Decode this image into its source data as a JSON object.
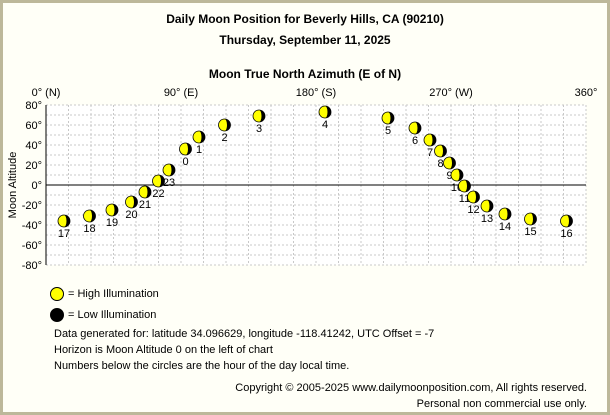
{
  "header": {
    "title": "Daily Moon Position for Beverly Hills, CA (90210)",
    "subtitle": "Thursday, September 11, 2025"
  },
  "chart_data": {
    "type": "scatter",
    "xlabel": "Moon True North Azimuth (E of N)",
    "ylabel": "Moon Altitude",
    "xlim": [
      0,
      360
    ],
    "ylim": [
      -80,
      80
    ],
    "x_ticks": [
      {
        "value": 0,
        "label": "0° (N)"
      },
      {
        "value": 90,
        "label": "90° (E)"
      },
      {
        "value": 180,
        "label": "180° (S)"
      },
      {
        "value": 270,
        "label": "270° (W)"
      },
      {
        "value": 360,
        "label": "360°"
      }
    ],
    "y_ticks": [
      80,
      60,
      40,
      20,
      0,
      -20,
      -40,
      -60,
      -80
    ],
    "y_tick_labels": [
      "80°",
      "60°",
      "40°",
      "20°",
      "0°",
      "-20°",
      "-40°",
      "-60°",
      "-80°"
    ],
    "grid": true,
    "points": [
      {
        "hour": "0",
        "x": 93,
        "y": 36
      },
      {
        "hour": "1",
        "x": 102,
        "y": 48
      },
      {
        "hour": "2",
        "x": 119,
        "y": 60
      },
      {
        "hour": "3",
        "x": 142,
        "y": 69
      },
      {
        "hour": "4",
        "x": 186,
        "y": 73
      },
      {
        "hour": "5",
        "x": 228,
        "y": 67
      },
      {
        "hour": "6",
        "x": 246,
        "y": 57
      },
      {
        "hour": "7",
        "x": 256,
        "y": 45
      },
      {
        "hour": "8",
        "x": 263,
        "y": 34
      },
      {
        "hour": "9",
        "x": 269,
        "y": 22
      },
      {
        "hour": "10",
        "x": 274,
        "y": 10
      },
      {
        "hour": "11",
        "x": 279,
        "y": -1
      },
      {
        "hour": "12",
        "x": 285,
        "y": -12
      },
      {
        "hour": "13",
        "x": 294,
        "y": -21
      },
      {
        "hour": "14",
        "x": 306,
        "y": -29
      },
      {
        "hour": "15",
        "x": 323,
        "y": -34
      },
      {
        "hour": "16",
        "x": 347,
        "y": -36
      },
      {
        "hour": "17",
        "x": 12,
        "y": -36
      },
      {
        "hour": "18",
        "x": 29,
        "y": -31
      },
      {
        "hour": "19",
        "x": 44,
        "y": -25
      },
      {
        "hour": "20",
        "x": 57,
        "y": -17
      },
      {
        "hour": "21",
        "x": 66,
        "y": -7
      },
      {
        "hour": "22",
        "x": 75,
        "y": 4
      },
      {
        "hour": "23",
        "x": 82,
        "y": 15
      }
    ]
  },
  "legend": {
    "high_label": "= High Illumination",
    "low_label": "= Low Illumination",
    "high_color": "#ffff00",
    "low_color": "#000000"
  },
  "notes": {
    "line1": "Data generated for: latitude 34.096629, longitude -118.41242, UTC Offset = -7",
    "line2": "Horizon is Moon Altitude 0 on the left of chart",
    "line3": "Numbers below the circles are the hour of the day local time."
  },
  "footer": {
    "copyright": "Copyright © 2005-2025 www.dailymoonposition.com, All rights reserved.",
    "notice": "Personal non commercial use only."
  }
}
